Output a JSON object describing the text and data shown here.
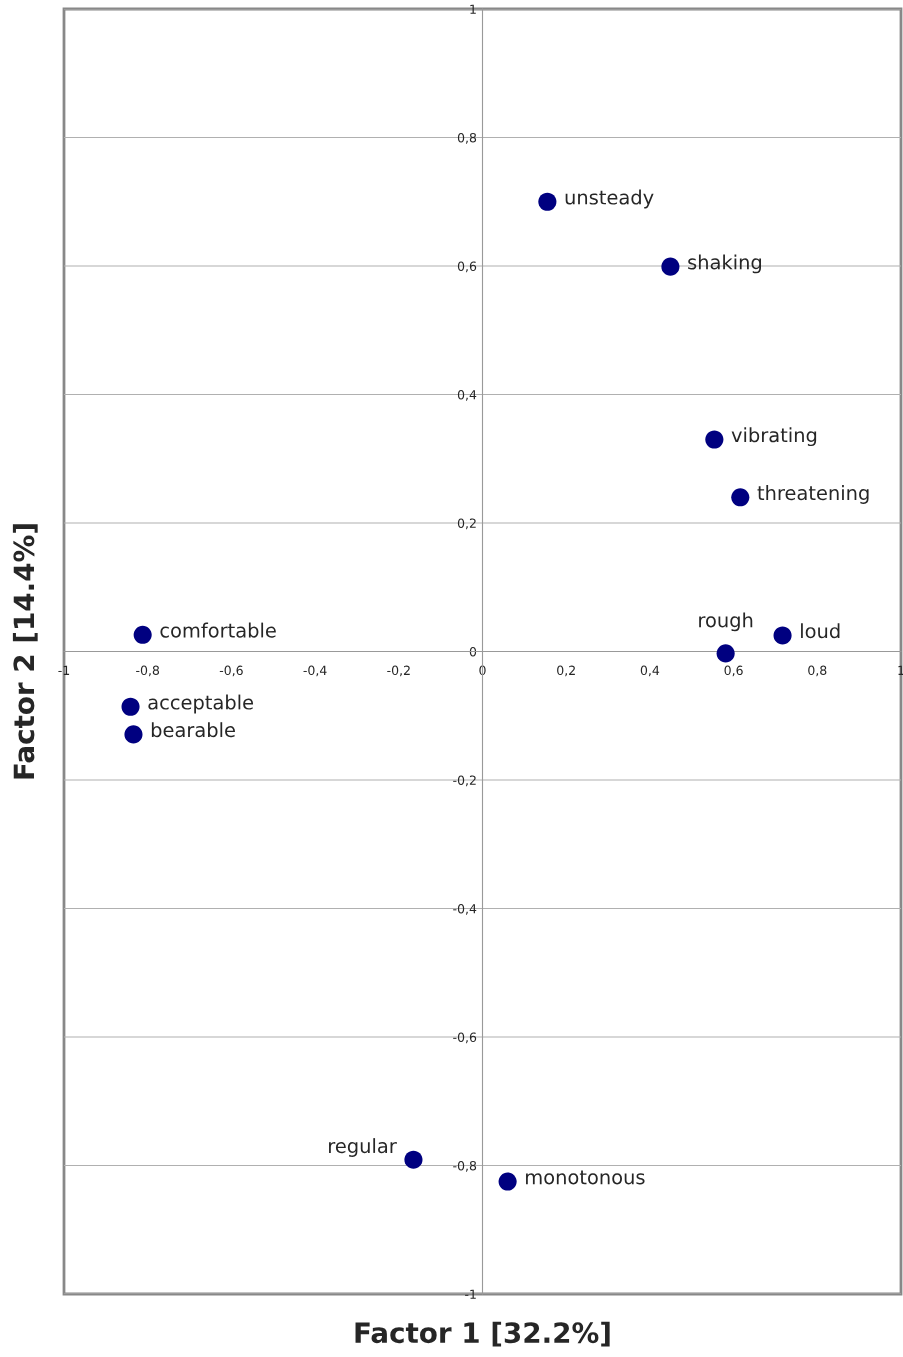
{
  "chart_data": {
    "type": "scatter",
    "xlabel": "Factor 1 [32.2%]",
    "ylabel": "Factor 2 [14.4%]",
    "x": [
      0.155,
      0.449,
      0.554,
      0.616,
      0.717,
      0.581,
      -0.812,
      -0.841,
      -0.834,
      -0.165,
      0.06
    ],
    "series": [
      {
        "color": "#000080",
        "values": [
          0.7,
          0.599,
          0.33,
          0.24,
          0.025,
          -0.003,
          0.026,
          -0.086,
          -0.129,
          -0.791,
          -0.825
        ]
      }
    ],
    "marker": "circle",
    "xlim": [
      -1,
      1
    ],
    "ylim": [
      -1,
      1
    ],
    "xticks": [
      {
        "value": -1,
        "label": "-1"
      },
      {
        "value": -0.8,
        "label": "-0,8"
      },
      {
        "value": -0.6,
        "label": "-0,6"
      },
      {
        "value": -0.4,
        "label": "-0,4"
      },
      {
        "value": -0.2,
        "label": "-0,2"
      },
      {
        "value": 0,
        "label": "0"
      },
      {
        "value": 0.2,
        "label": "0,2"
      },
      {
        "value": 0.4,
        "label": "0,4"
      },
      {
        "value": 0.6,
        "label": "0,6"
      },
      {
        "value": 0.8,
        "label": "0,8"
      },
      {
        "value": 1,
        "label": "1"
      }
    ],
    "yticks": [
      {
        "value": -1,
        "label": "-1"
      },
      {
        "value": -0.8,
        "label": "-0,8"
      },
      {
        "value": -0.6,
        "label": "-0,6"
      },
      {
        "value": -0.4,
        "label": "-0,4"
      },
      {
        "value": -0.2,
        "label": "-0,2"
      },
      {
        "value": 0,
        "label": "0"
      },
      {
        "value": 0.2,
        "label": "0,2"
      },
      {
        "value": 0.4,
        "label": "0,4"
      },
      {
        "value": 0.6,
        "label": "0,6"
      },
      {
        "value": 0.8,
        "label": "0,8"
      },
      {
        "value": 1,
        "label": "1"
      }
    ],
    "grid": "y",
    "annotations": [
      {
        "text": "unsteady",
        "x": 0.155,
        "y": 0.7
      },
      {
        "text": "shaking",
        "x": 0.449,
        "y": 0.599
      },
      {
        "text": "vibrating",
        "x": 0.554,
        "y": 0.33
      },
      {
        "text": "threatening",
        "x": 0.616,
        "y": 0.24
      },
      {
        "text": "loud",
        "x": 0.717,
        "y": 0.025
      },
      {
        "text": "rough",
        "x": 0.581,
        "y": -0.003
      },
      {
        "text": "comfortable",
        "x": -0.812,
        "y": 0.026
      },
      {
        "text": "acceptable",
        "x": -0.841,
        "y": -0.086
      },
      {
        "text": "bearable",
        "x": -0.834,
        "y": -0.129
      },
      {
        "text": "regular",
        "x": -0.165,
        "y": -0.791
      },
      {
        "text": "monotonous",
        "x": 0.06,
        "y": -0.825
      }
    ]
  }
}
